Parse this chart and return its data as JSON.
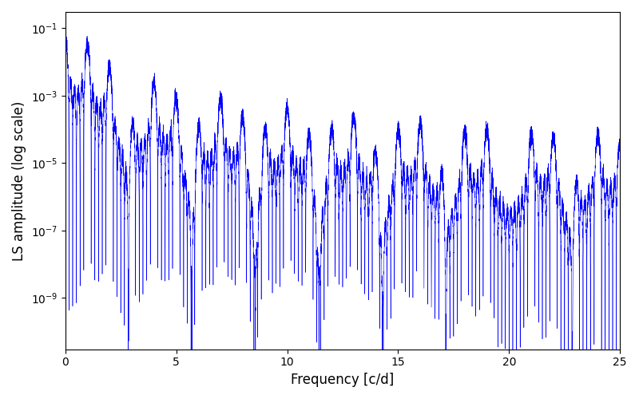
{
  "xlabel": "Frequency [c/d]",
  "ylabel": "LS amplitude (log scale)",
  "line_color": "#0000ff",
  "line_width": 0.4,
  "xlim": [
    0,
    25
  ],
  "ylim": [
    3e-11,
    0.3
  ],
  "figsize": [
    8.0,
    5.0
  ],
  "dpi": 100,
  "yticks_log": [
    -9,
    -7,
    -5,
    -3,
    -1
  ],
  "xticks": [
    0,
    5,
    10,
    15,
    20,
    25
  ],
  "background_color": "#ffffff",
  "freq_min": 0.0,
  "freq_max": 25.0,
  "n_freq": 12000,
  "seed": 1234
}
